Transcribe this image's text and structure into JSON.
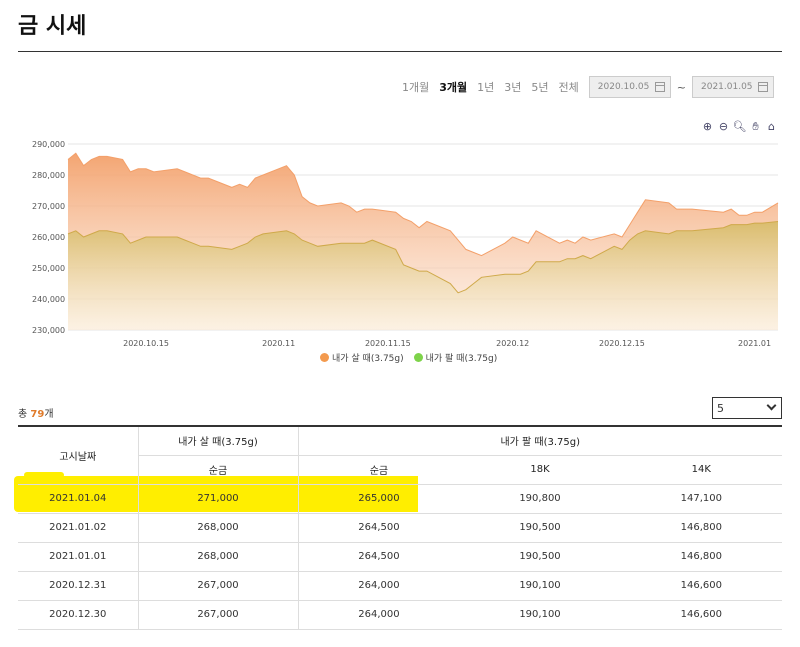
{
  "page": {
    "title": "금 시세"
  },
  "range": {
    "buttons": [
      "1개월",
      "3개월",
      "1년",
      "3년",
      "5년",
      "전체"
    ],
    "active_index": 1,
    "start_date": "2020.10.05",
    "end_date": "2021.01.05",
    "separator": "~"
  },
  "icons": [
    "zoom-in-icon",
    "zoom-out-icon",
    "magnify-icon",
    "pan-hand-icon",
    "home-icon"
  ],
  "chart_data": {
    "type": "area",
    "y_tick_labels": [
      "290,000",
      "280,000",
      "270,000",
      "260,000",
      "250,000",
      "240,000",
      "230,000"
    ],
    "ylim": [
      230000,
      290000
    ],
    "x_tick_labels": [
      "2020.10.15",
      "2020.11",
      "2020.11.15",
      "2020.12",
      "2020.12.15",
      "2021.01"
    ],
    "x_tick_dates": [
      "2020-10-15",
      "2020-11-01",
      "2020-11-15",
      "2020-12-01",
      "2020-12-15",
      "2021-01-01"
    ],
    "series": [
      {
        "name": "내가 살 때(3.75g)",
        "color": "#f39a4e",
        "x": [
          "2020-10-05",
          "2020-10-06",
          "2020-10-07",
          "2020-10-08",
          "2020-10-09",
          "2020-10-10",
          "2020-10-12",
          "2020-10-13",
          "2020-10-14",
          "2020-10-15",
          "2020-10-16",
          "2020-10-19",
          "2020-10-20",
          "2020-10-21",
          "2020-10-22",
          "2020-10-23",
          "2020-10-26",
          "2020-10-27",
          "2020-10-28",
          "2020-10-29",
          "2020-10-30",
          "2020-11-02",
          "2020-11-03",
          "2020-11-04",
          "2020-11-05",
          "2020-11-06",
          "2020-11-09",
          "2020-11-10",
          "2020-11-11",
          "2020-11-12",
          "2020-11-13",
          "2020-11-16",
          "2020-11-17",
          "2020-11-18",
          "2020-11-19",
          "2020-11-20",
          "2020-11-23",
          "2020-11-24",
          "2020-11-25",
          "2020-11-26",
          "2020-11-27",
          "2020-11-30",
          "2020-12-01",
          "2020-12-02",
          "2020-12-03",
          "2020-12-04",
          "2020-12-07",
          "2020-12-08",
          "2020-12-09",
          "2020-12-10",
          "2020-12-11",
          "2020-12-14",
          "2020-12-15",
          "2020-12-16",
          "2020-12-17",
          "2020-12-18",
          "2020-12-21",
          "2020-12-22",
          "2020-12-23",
          "2020-12-24",
          "2020-12-28",
          "2020-12-29",
          "2020-12-30",
          "2020-12-31",
          "2021-01-01",
          "2021-01-02",
          "2021-01-04"
        ],
        "values": [
          285000,
          287000,
          283000,
          285000,
          286000,
          286000,
          285000,
          281000,
          282000,
          282000,
          281000,
          282000,
          281000,
          280000,
          279000,
          279000,
          276000,
          277000,
          276000,
          279000,
          280000,
          283000,
          280000,
          273000,
          271000,
          270000,
          271000,
          270000,
          268000,
          269000,
          269000,
          268000,
          266000,
          265000,
          263000,
          265000,
          262000,
          259000,
          256000,
          255000,
          254000,
          258000,
          260000,
          259000,
          258000,
          262000,
          258000,
          259000,
          258000,
          260000,
          259000,
          261000,
          260000,
          264000,
          268000,
          272000,
          271000,
          269000,
          269000,
          269000,
          268000,
          269000,
          267000,
          267000,
          268000,
          268000,
          271000
        ]
      },
      {
        "name": "내가 팔 때(3.75g)",
        "color": "#d9b44a",
        "x": [
          "2020-10-05",
          "2020-10-06",
          "2020-10-07",
          "2020-10-08",
          "2020-10-09",
          "2020-10-10",
          "2020-10-12",
          "2020-10-13",
          "2020-10-14",
          "2020-10-15",
          "2020-10-16",
          "2020-10-19",
          "2020-10-20",
          "2020-10-21",
          "2020-10-22",
          "2020-10-23",
          "2020-10-26",
          "2020-10-27",
          "2020-10-28",
          "2020-10-29",
          "2020-10-30",
          "2020-11-02",
          "2020-11-03",
          "2020-11-04",
          "2020-11-05",
          "2020-11-06",
          "2020-11-09",
          "2020-11-10",
          "2020-11-11",
          "2020-11-12",
          "2020-11-13",
          "2020-11-16",
          "2020-11-17",
          "2020-11-18",
          "2020-11-19",
          "2020-11-20",
          "2020-11-23",
          "2020-11-24",
          "2020-11-25",
          "2020-11-26",
          "2020-11-27",
          "2020-11-30",
          "2020-12-01",
          "2020-12-02",
          "2020-12-03",
          "2020-12-04",
          "2020-12-07",
          "2020-12-08",
          "2020-12-09",
          "2020-12-10",
          "2020-12-11",
          "2020-12-14",
          "2020-12-15",
          "2020-12-16",
          "2020-12-17",
          "2020-12-18",
          "2020-12-21",
          "2020-12-22",
          "2020-12-23",
          "2020-12-24",
          "2020-12-28",
          "2020-12-29",
          "2020-12-30",
          "2020-12-31",
          "2021-01-01",
          "2021-01-02",
          "2021-01-04"
        ],
        "values": [
          261000,
          262000,
          260000,
          261000,
          262000,
          262000,
          261000,
          258000,
          259000,
          260000,
          260000,
          260000,
          259000,
          258000,
          257000,
          257000,
          256000,
          257000,
          258000,
          260000,
          261000,
          262000,
          261000,
          259000,
          258000,
          257000,
          258000,
          258000,
          258000,
          258000,
          259000,
          256000,
          251000,
          250000,
          249000,
          249000,
          245000,
          242000,
          243000,
          245000,
          247000,
          248000,
          248000,
          248000,
          249000,
          252000,
          252000,
          253000,
          253000,
          254000,
          253000,
          257000,
          256000,
          259000,
          261000,
          262000,
          261000,
          262000,
          262000,
          262000,
          263000,
          264000,
          264000,
          264000,
          264500,
          264500,
          265000
        ]
      }
    ]
  },
  "summary": {
    "prefix": "총 ",
    "count": "79",
    "suffix": "개"
  },
  "rows_select": {
    "value": "5"
  },
  "table": {
    "headers": {
      "date": "고시날짜",
      "buy": "내가 살 때(3.75g)",
      "sell": "내가 팔 때(3.75g)",
      "buy_pure": "순금",
      "sell_pure": "순금",
      "sell_18k": "18K",
      "sell_14k": "14K"
    },
    "rows": [
      [
        "2021.01.04",
        "271,000",
        "265,000",
        "190,800",
        "147,100"
      ],
      [
        "2021.01.02",
        "268,000",
        "264,500",
        "190,500",
        "146,800"
      ],
      [
        "2021.01.01",
        "268,000",
        "264,500",
        "190,500",
        "146,800"
      ],
      [
        "2020.12.31",
        "267,000",
        "264,000",
        "190,100",
        "146,600"
      ],
      [
        "2020.12.30",
        "267,000",
        "264,000",
        "190,100",
        "146,600"
      ]
    ],
    "highlighted_row": 0,
    "highlight_color": "#ffee00"
  }
}
